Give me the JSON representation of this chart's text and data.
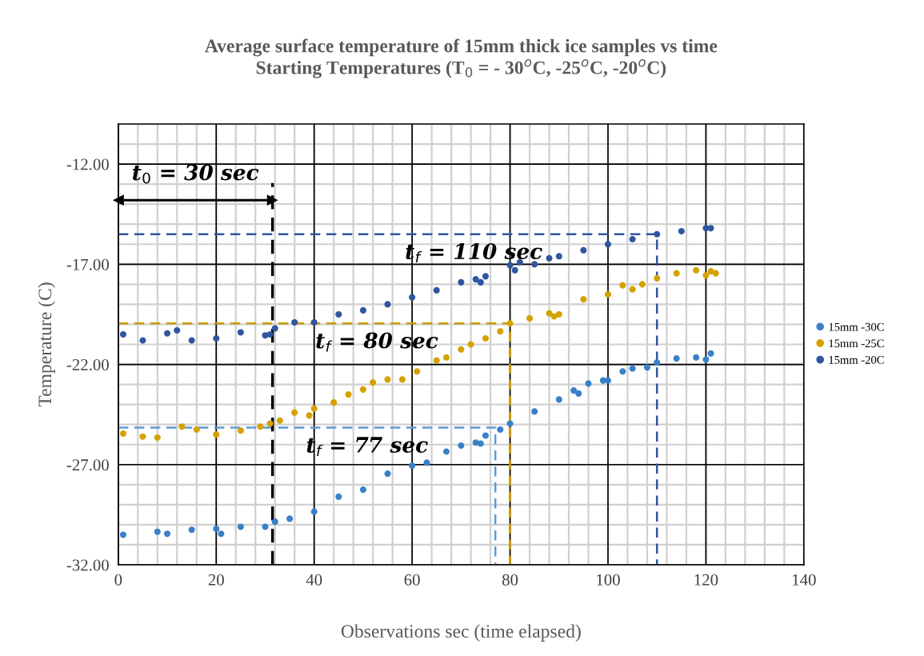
{
  "chart_data": {
    "type": "scatter",
    "title": "Average surface temperature of 15mm thick ice samples vs time\nStarting Temperatures (T$_{0}$ = - 30$^{o}$C, -25$^{o}$C, -20$^{o}$C)",
    "xlabel": "Observations sec (time elapsed)",
    "ylabel": "Temperature (C)",
    "xlim": [
      0,
      140
    ],
    "xticks": [
      0,
      20,
      40,
      60,
      80,
      100,
      120,
      140
    ],
    "ylim": [
      -32,
      -10
    ],
    "yticks": [
      {
        "value": -32,
        "label": "-32.00"
      },
      {
        "value": -27,
        "label": "-27.00"
      },
      {
        "value": -22,
        "label": "-22.00"
      },
      {
        "value": -17,
        "label": "-17.00"
      },
      {
        "value": -12,
        "label": "-12.00"
      }
    ],
    "grid": true,
    "legend": "right",
    "marker": "circle",
    "series": [
      {
        "name": "15mm -30C",
        "color": "#3a80c8",
        "x": [
          1,
          8,
          10,
          15,
          20,
          21,
          25,
          30,
          32,
          35,
          40,
          45,
          50,
          55,
          60,
          63,
          67,
          70,
          73,
          74,
          75,
          78,
          80,
          85,
          90,
          93,
          94,
          96,
          99,
          100,
          103,
          105,
          108,
          110,
          114,
          118,
          120,
          121
        ],
        "values": [
          -30.5,
          -30.35,
          -30.45,
          -30.25,
          -30.2,
          -30.45,
          -30.1,
          -30.1,
          -29.85,
          -29.7,
          -29.35,
          -28.6,
          -28.25,
          -27.45,
          -27.05,
          -26.9,
          -26.35,
          -26.05,
          -25.9,
          -25.95,
          -25.55,
          -25.25,
          -24.95,
          -24.35,
          -23.75,
          -23.3,
          -23.45,
          -22.95,
          -22.8,
          -22.8,
          -22.35,
          -22.2,
          -22.15,
          -21.9,
          -21.7,
          -21.65,
          -21.75,
          -21.45
        ]
      },
      {
        "name": "15mm -25C",
        "color": "#d4a200",
        "x": [
          1,
          5,
          8,
          13,
          16,
          20,
          25,
          29,
          31,
          33,
          36,
          39,
          40,
          44,
          47,
          50,
          52,
          55,
          58,
          61,
          65,
          67,
          70,
          72,
          75,
          78,
          80,
          84,
          88,
          89,
          90,
          95,
          100,
          103,
          105,
          107,
          110,
          114,
          118,
          120,
          121,
          122
        ],
        "values": [
          -25.45,
          -25.6,
          -25.65,
          -25.1,
          -25.25,
          -25.5,
          -25.3,
          -25.1,
          -24.95,
          -24.8,
          -24.4,
          -24.55,
          -24.2,
          -23.9,
          -23.5,
          -23.25,
          -22.9,
          -22.75,
          -22.75,
          -22.35,
          -21.8,
          -21.65,
          -21.25,
          -21.0,
          -20.7,
          -20.35,
          -19.95,
          -19.7,
          -19.45,
          -19.6,
          -19.5,
          -18.75,
          -18.5,
          -18.05,
          -18.25,
          -18.0,
          -17.7,
          -17.45,
          -17.3,
          -17.55,
          -17.35,
          -17.45
        ]
      },
      {
        "name": "15mm -20C",
        "color": "#2f569f",
        "x": [
          1,
          5,
          10,
          12,
          15,
          20,
          25,
          30,
          31,
          32,
          36,
          40,
          45,
          50,
          55,
          60,
          65,
          70,
          73,
          74,
          75,
          80,
          81,
          82,
          85,
          88,
          90,
          95,
          100,
          105,
          110,
          115,
          120,
          121
        ],
        "values": [
          -20.5,
          -20.8,
          -20.45,
          -20.3,
          -20.8,
          -20.7,
          -20.4,
          -20.55,
          -20.5,
          -20.2,
          -19.9,
          -19.9,
          -19.5,
          -19.3,
          -19.0,
          -18.65,
          -18.3,
          -17.9,
          -17.75,
          -17.9,
          -17.6,
          -17.05,
          -17.3,
          -16.9,
          -17.0,
          -16.7,
          -16.6,
          -16.3,
          -16.0,
          -15.75,
          -15.5,
          -15.35,
          -15.2,
          -15.2
        ]
      },
      {
        "type": "line",
        "line_style": "dashed",
        "marker": "none",
        "color": "#2f569f",
        "x": [
          0,
          110,
          110
        ],
        "values": [
          -15.5,
          -15.5,
          -32
        ]
      },
      {
        "type": "line",
        "line_style": "dashed",
        "marker": "none",
        "color": "#c99a00",
        "x": [
          0,
          80,
          80
        ],
        "values": [
          -19.95,
          -19.95,
          -32
        ]
      },
      {
        "type": "line",
        "line_style": "dashed",
        "marker": "none",
        "color": "#5b9bd5",
        "x": [
          0,
          77,
          77
        ],
        "values": [
          -25.15,
          -25.15,
          -32
        ]
      },
      {
        "type": "line",
        "line_style": "dashed",
        "marker": "none",
        "color": "#000000",
        "x": [
          31.5,
          31.5
        ],
        "values": [
          -32,
          -12.95
        ]
      },
      {
        "type": "line",
        "line_style": "solid",
        "marker": "triangle",
        "color": "#000000",
        "x": [
          0,
          31.5
        ],
        "values": [
          -13.8,
          -13.8
        ]
      }
    ],
    "annotations": [
      "t$_{0}$ = 30 sec",
      "t$_{f}$ = 110 sec",
      "t$_{f}$ = 80 sec",
      "t$_{f}$ = 77 sec"
    ]
  }
}
